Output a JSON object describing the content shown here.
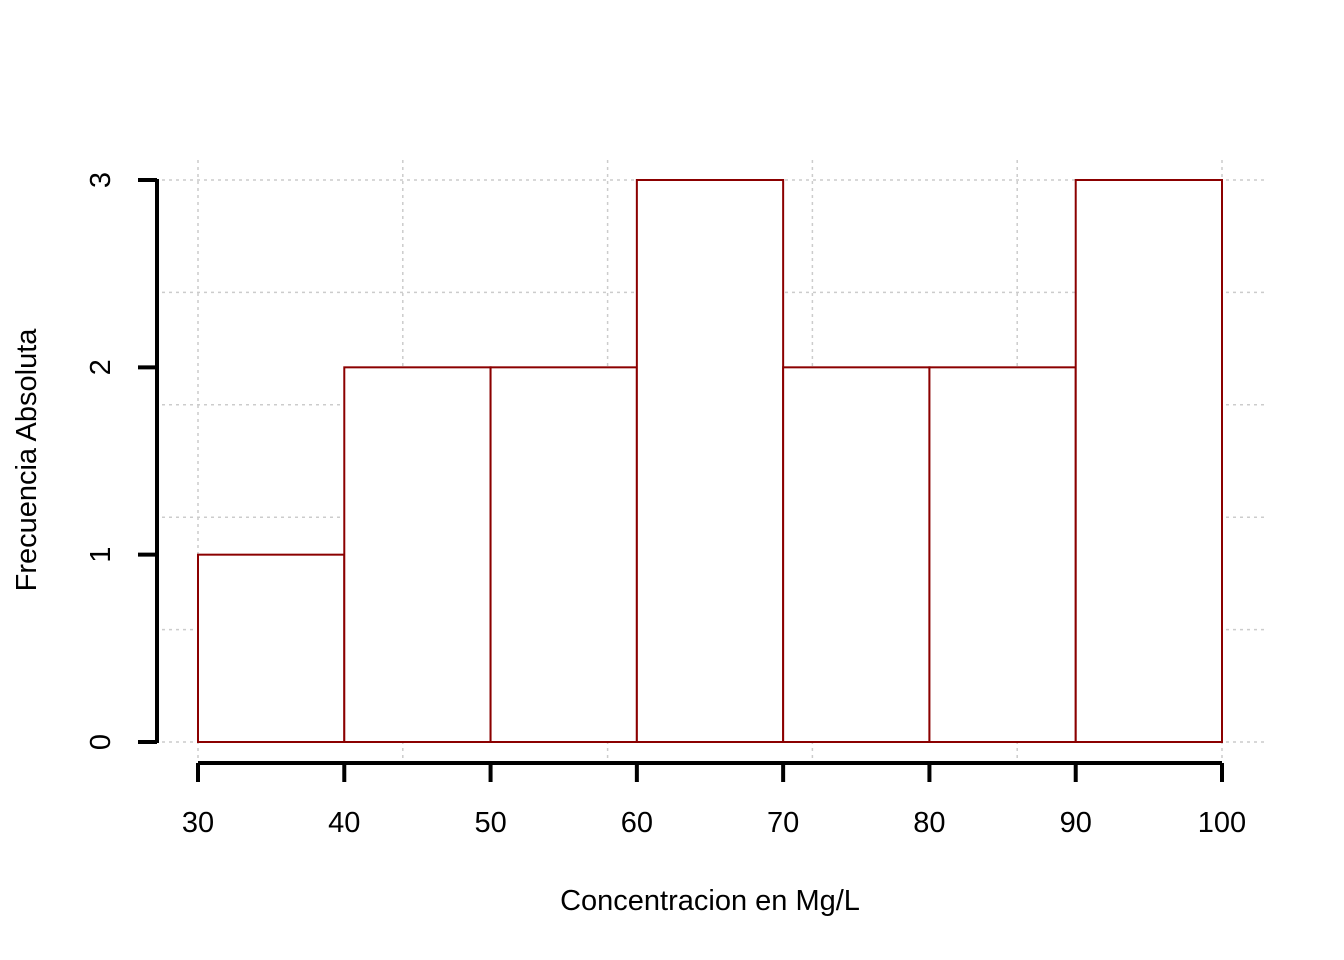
{
  "chart_data": {
    "type": "bar",
    "subtype": "histogram",
    "bins": [
      {
        "from": 30,
        "to": 40,
        "count": 1
      },
      {
        "from": 40,
        "to": 50,
        "count": 2
      },
      {
        "from": 50,
        "to": 60,
        "count": 2
      },
      {
        "from": 60,
        "to": 70,
        "count": 3
      },
      {
        "from": 70,
        "to": 80,
        "count": 2
      },
      {
        "from": 80,
        "to": 90,
        "count": 2
      },
      {
        "from": 90,
        "to": 100,
        "count": 3
      }
    ],
    "title": "",
    "xlabel": "Concentracion en Mg/L",
    "ylabel": "Frecuencia Absoluta",
    "xlim": [
      30,
      100
    ],
    "ylim": [
      0,
      3
    ],
    "x_ticks": [
      "30",
      "40",
      "50",
      "60",
      "70",
      "80",
      "90",
      "100"
    ],
    "y_ticks": [
      "0",
      "1",
      "2",
      "3"
    ],
    "grid": true,
    "bar_border_color": "#8b0000",
    "bar_fill_color": "#ffffff",
    "grid_color": "#cccccc",
    "axis_color": "#000000"
  }
}
